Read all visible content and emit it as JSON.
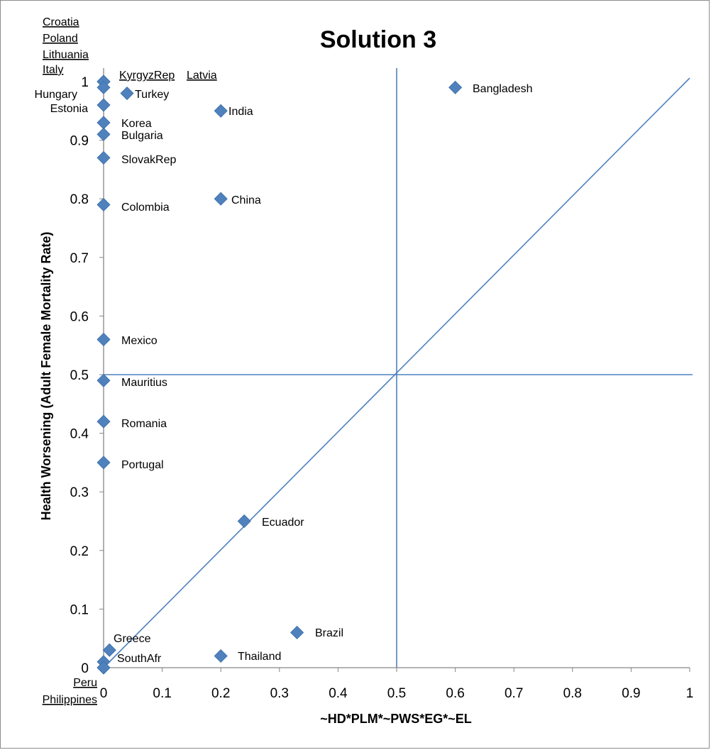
{
  "chart_data": {
    "type": "scatter",
    "title": "Solution 3",
    "xlabel": "~HD*PLM*~PWS*EG*~EL",
    "ylabel": "Health Worsening (Adult Female Mortality Rate)",
    "xlim": [
      0,
      1
    ],
    "ylim": [
      0,
      1
    ],
    "xticks": [
      "0",
      "0.1",
      "0.2",
      "0.3",
      "0.4",
      "0.5",
      "0.6",
      "0.7",
      "0.8",
      "0.9",
      "1"
    ],
    "yticks": [
      "0",
      "0.1",
      "0.2",
      "0.3",
      "0.4",
      "0.5",
      "0.6",
      "0.7",
      "0.8",
      "0.9",
      "1"
    ],
    "grid": false,
    "legend": "none",
    "marker_color": "#4f81bd",
    "line_color": "#4f81bd",
    "reference_lines": [
      {
        "type": "vertical",
        "x": 0.5
      },
      {
        "type": "horizontal",
        "y": 0.5
      },
      {
        "type": "diagonal",
        "from": [
          0,
          0
        ],
        "to": [
          1,
          1
        ]
      }
    ],
    "points": [
      {
        "label": "Bangladesh",
        "x": 0.6,
        "y": 0.99
      },
      {
        "label": "Turkey",
        "x": 0.04,
        "y": 0.98
      },
      {
        "label": "India",
        "x": 0.2,
        "y": 0.95
      },
      {
        "label": "China",
        "x": 0.2,
        "y": 0.8
      },
      {
        "label": "Ecuador",
        "x": 0.24,
        "y": 0.25
      },
      {
        "label": "Brazil",
        "x": 0.33,
        "y": 0.06
      },
      {
        "label": "Thailand",
        "x": 0.2,
        "y": 0.02
      },
      {
        "label": "Greece",
        "x": 0.01,
        "y": 0.03
      },
      {
        "label": "SouthAfr",
        "x": 0.0,
        "y": 0.01
      },
      {
        "label": "Peru",
        "x": 0.0,
        "y": 0.0
      },
      {
        "label": "Philippines",
        "x": 0.0,
        "y": 0.0
      },
      {
        "label": "Croatia",
        "x": 0.0,
        "y": 1.0
      },
      {
        "label": "Poland",
        "x": 0.0,
        "y": 1.0
      },
      {
        "label": "Lithuania",
        "x": 0.0,
        "y": 1.0
      },
      {
        "label": "Italy",
        "x": 0.0,
        "y": 1.0
      },
      {
        "label": "KyrgyzRep",
        "x": 0.0,
        "y": 1.0
      },
      {
        "label": "Latvia",
        "x": 0.0,
        "y": 1.0
      },
      {
        "label": "Hungary",
        "x": 0.0,
        "y": 0.99
      },
      {
        "label": "Estonia",
        "x": 0.0,
        "y": 0.96
      },
      {
        "label": "Korea",
        "x": 0.0,
        "y": 0.93
      },
      {
        "label": "Bulgaria",
        "x": 0.0,
        "y": 0.91
      },
      {
        "label": "SlovakRep",
        "x": 0.0,
        "y": 0.87
      },
      {
        "label": "Colombia",
        "x": 0.0,
        "y": 0.79
      },
      {
        "label": "Mexico",
        "x": 0.0,
        "y": 0.56
      },
      {
        "label": "Mauritius",
        "x": 0.0,
        "y": 0.49
      },
      {
        "label": "Romania",
        "x": 0.0,
        "y": 0.42
      },
      {
        "label": "Portugal",
        "x": 0.0,
        "y": 0.35
      }
    ]
  }
}
